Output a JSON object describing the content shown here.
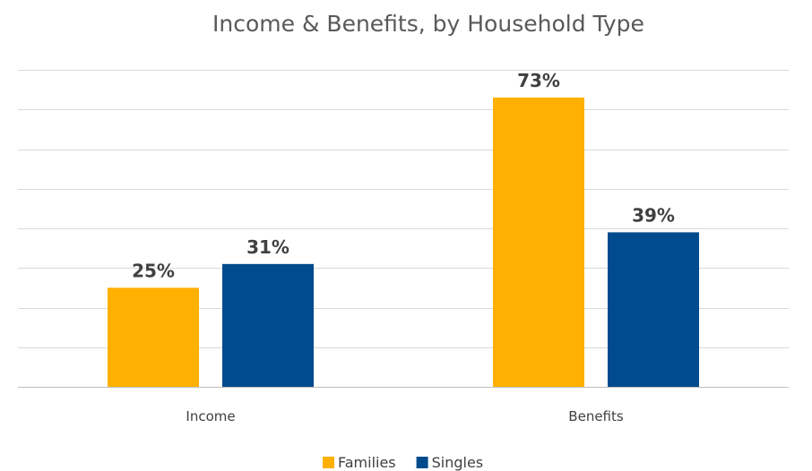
{
  "chart_data": {
    "type": "bar",
    "title": "Income & Benefits, by Household Type",
    "categories": [
      "Income",
      "Benefits"
    ],
    "series": [
      {
        "name": "Families",
        "values": [
          25,
          73
        ],
        "labels": [
          "25%",
          "73%"
        ],
        "color": "#ffb000"
      },
      {
        "name": "Singles",
        "values": [
          31,
          39
        ],
        "labels": [
          "31%",
          "39%"
        ],
        "color": "#004b8d"
      }
    ],
    "ylim": [
      0,
      80
    ],
    "grid": true,
    "legend": "bottom",
    "y_tick_labels_shown": false
  }
}
